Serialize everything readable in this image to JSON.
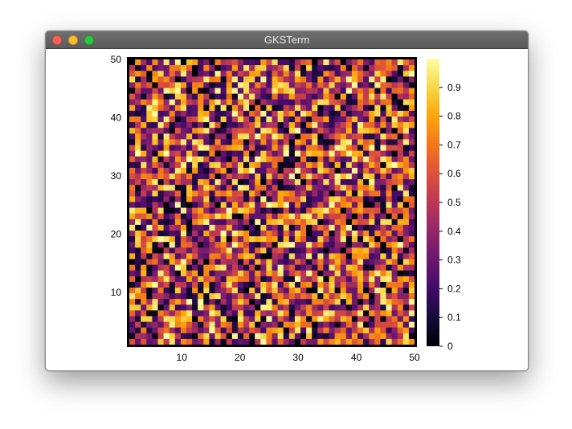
{
  "window": {
    "title": "GKSTerm",
    "controls": {
      "close": {
        "color": "#fe5f57",
        "icon": "close-traffic-light-icon"
      },
      "minimize": {
        "color": "#febb2e",
        "icon": "minimize-traffic-light-icon"
      },
      "zoom": {
        "color": "#28c840",
        "icon": "zoom-traffic-light-icon"
      }
    }
  },
  "chart_data": {
    "type": "heatmap",
    "title": "",
    "xlabel": "",
    "ylabel": "",
    "xlim": [
      1,
      50
    ],
    "ylim": [
      1,
      50
    ],
    "x_ticks": [
      10,
      20,
      30,
      40,
      50
    ],
    "y_ticks": [
      10,
      20,
      30,
      40,
      50
    ],
    "grid": false,
    "colormap": "inferno",
    "colorbar": {
      "range": [
        0,
        1
      ],
      "ticks": [
        "0",
        "0.1",
        "0.2",
        "0.3",
        "0.4",
        "0.5",
        "0.6",
        "0.7",
        "0.8",
        "0.9"
      ],
      "placement": "right"
    },
    "rows": 50,
    "cols": 50,
    "values_distribution": "uniform random in [0, 1]"
  }
}
